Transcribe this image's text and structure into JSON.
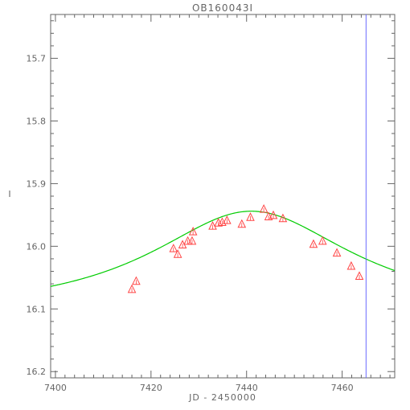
{
  "chart_data": {
    "type": "scatter",
    "title": "OB160043I",
    "xlabel": "JD - 2450000",
    "ylabel": "I",
    "xlim": [
      7399,
      7471
    ],
    "ylim": [
      16.21,
      15.63
    ],
    "y_inverted": true,
    "grid": false,
    "xticks": [
      7400,
      7420,
      7440,
      7460
    ],
    "yticks": [
      15.7,
      15.8,
      15.9,
      16.0,
      16.1,
      16.2
    ],
    "xtick_labels": [
      "7400",
      "7420",
      "7440",
      "7460"
    ],
    "ytick_labels": [
      "15.7",
      "15.8",
      "15.9",
      "16.0",
      "16.1",
      "16.2"
    ],
    "series": [
      {
        "kind": "points",
        "marker": "triangle",
        "color": "#ff4444",
        "x": [
          7416.0,
          7416.9,
          7424.7,
          7425.6,
          7426.6,
          7427.7,
          7428.6,
          7428.8,
          7432.9,
          7434.1,
          7434.9,
          7435.9,
          7439.0,
          7440.8,
          7443.6,
          7444.6,
          7445.6,
          7447.6,
          7454.0,
          7455.9,
          7458.9,
          7461.9,
          7463.6
        ],
        "y": [
          16.068,
          16.055,
          16.003,
          16.012,
          15.997,
          15.991,
          15.991,
          15.976,
          15.967,
          15.962,
          15.961,
          15.958,
          15.964,
          15.953,
          15.94,
          15.952,
          15.95,
          15.955,
          15.996,
          15.991,
          16.01,
          16.031,
          16.047
        ]
      },
      {
        "kind": "model",
        "color": "#00cc00",
        "peak_time": 7441.0,
        "peak_mag": 15.944,
        "baseline_mag": 16.11,
        "timescale": 26.0
      }
    ],
    "vertical_line": {
      "x": 7465.0,
      "color": "#6a6aff"
    }
  }
}
